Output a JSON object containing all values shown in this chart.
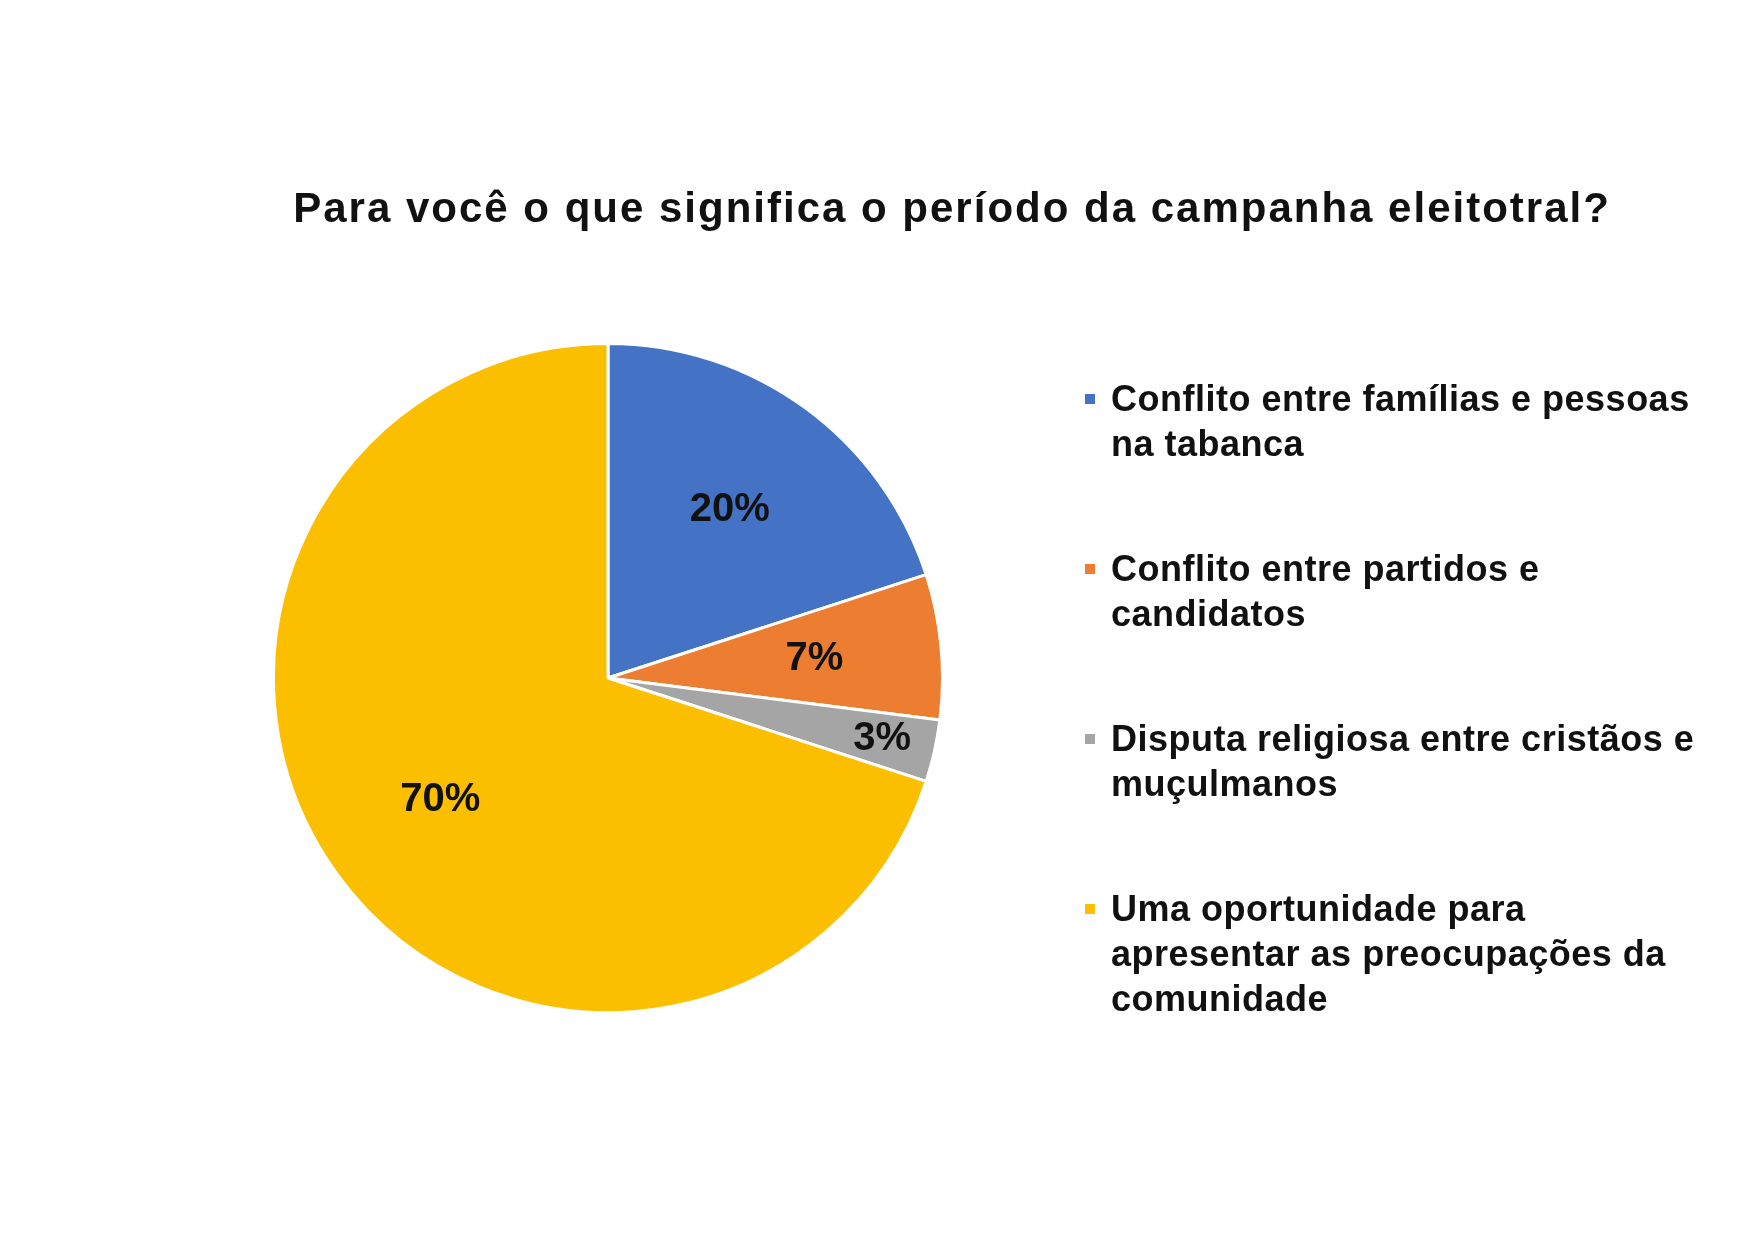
{
  "chart_data": {
    "type": "pie",
    "title": "Para você o que significa o período da campanha eleitotral?",
    "categories": [
      "Conflito entre famílias e pessoas na tabanca",
      "Conflito entre partidos e candidatos",
      "Disputa religiosa entre cristãos e muçulmanos",
      "Uma oportunidade para apresentar as preocupações da comunidade"
    ],
    "values": [
      20,
      7,
      3,
      70
    ],
    "colors": [
      "#4472c4",
      "#ed7d31",
      "#a5a5a5",
      "#fbbf00"
    ],
    "value_labels": [
      "20%",
      "7%",
      "3%",
      "70%"
    ],
    "legend": "right"
  }
}
